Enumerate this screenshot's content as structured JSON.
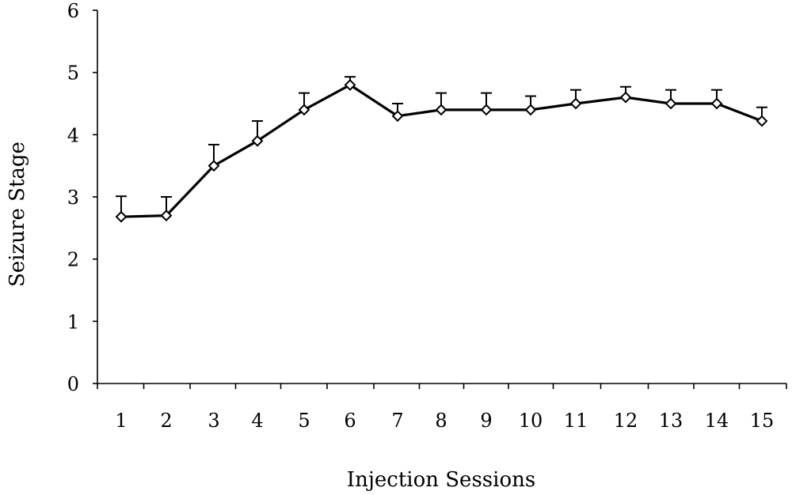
{
  "chart_data": {
    "type": "line",
    "title": "",
    "xlabel": "Injection Sessions",
    "ylabel": "Seizure Stage",
    "ylim": [
      0,
      6
    ],
    "y_ticks": [
      0,
      1,
      2,
      3,
      4,
      5,
      6
    ],
    "x_ticks": [
      "1",
      "2",
      "3",
      "4",
      "5",
      "6",
      "7",
      "8",
      "9",
      "10",
      "11",
      "12",
      "13",
      "14",
      "15"
    ],
    "series": [
      {
        "x": [
          1,
          2,
          3,
          4,
          5,
          6,
          7,
          8,
          9,
          10,
          11,
          12,
          13,
          14,
          15
        ],
        "values": [
          2.68,
          2.7,
          3.5,
          3.9,
          4.4,
          4.8,
          4.3,
          4.4,
          4.4,
          4.4,
          4.5,
          4.6,
          4.5,
          4.5,
          4.22
        ],
        "error_upper": [
          0.33,
          0.3,
          0.34,
          0.32,
          0.27,
          0.13,
          0.2,
          0.27,
          0.27,
          0.22,
          0.22,
          0.17,
          0.22,
          0.22,
          0.22
        ]
      }
    ],
    "marker": "open-diamond",
    "grid": false,
    "colors": {
      "line": "#000000",
      "marker_fill": "#ffffff"
    }
  }
}
